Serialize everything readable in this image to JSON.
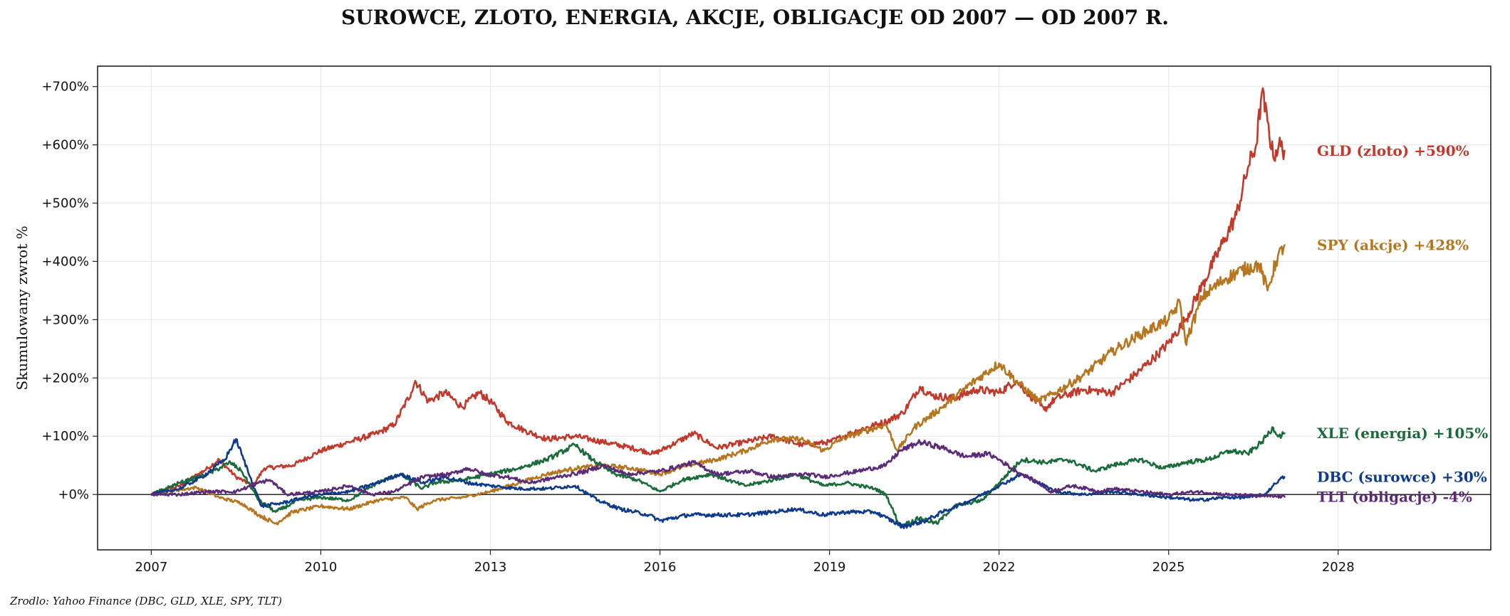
{
  "chart_data": {
    "type": "line",
    "title": "SUROWCE, ZLOTO, ENERGIA, AKCJE, OBLIGACJE OD 2007 — OD 2007 R.",
    "xlabel": "",
    "ylabel": "Skumulowany zwrot %",
    "source": "Zrodlo: Yahoo Finance (DBC, GLD, XLE, SPY, TLT)",
    "xlim": [
      2006.05,
      2030.7
    ],
    "ylim": [
      -95,
      735
    ],
    "x_ticks": [
      2007,
      2010,
      2013,
      2016,
      2019,
      2022,
      2025,
      2028
    ],
    "x_tick_labels": [
      "2007",
      "2010",
      "2013",
      "2016",
      "2019",
      "2022",
      "2025",
      "2028"
    ],
    "y_ticks": [
      0,
      100,
      200,
      300,
      400,
      500,
      600,
      700
    ],
    "y_tick_labels": [
      "+0%",
      "+100%",
      "+200%",
      "+300%",
      "+400%",
      "+500%",
      "+600%",
      "+700%"
    ],
    "grid": true,
    "zero_line": true,
    "series": [
      {
        "name": "GLD (zloto)",
        "end_label": "GLD (zloto)  +590%",
        "label_y": 590,
        "color": "#c0392b",
        "points": [
          [
            2007.0,
            0
          ],
          [
            2007.5,
            15
          ],
          [
            2008.0,
            45
          ],
          [
            2008.2,
            60
          ],
          [
            2008.5,
            30
          ],
          [
            2008.8,
            15
          ],
          [
            2009.0,
            45
          ],
          [
            2009.5,
            50
          ],
          [
            2010.0,
            75
          ],
          [
            2010.5,
            90
          ],
          [
            2011.0,
            105
          ],
          [
            2011.3,
            120
          ],
          [
            2011.6,
            175
          ],
          [
            2011.67,
            195
          ],
          [
            2011.9,
            160
          ],
          [
            2012.2,
            175
          ],
          [
            2012.5,
            150
          ],
          [
            2012.8,
            175
          ],
          [
            2013.0,
            160
          ],
          [
            2013.3,
            125
          ],
          [
            2013.6,
            110
          ],
          [
            2014.0,
            95
          ],
          [
            2014.5,
            100
          ],
          [
            2015.0,
            90
          ],
          [
            2015.5,
            80
          ],
          [
            2015.9,
            70
          ],
          [
            2016.3,
            90
          ],
          [
            2016.6,
            105
          ],
          [
            2017.0,
            80
          ],
          [
            2017.5,
            90
          ],
          [
            2018.0,
            100
          ],
          [
            2018.5,
            85
          ],
          [
            2019.0,
            90
          ],
          [
            2019.5,
            110
          ],
          [
            2020.0,
            125
          ],
          [
            2020.3,
            140
          ],
          [
            2020.6,
            185
          ],
          [
            2020.8,
            170
          ],
          [
            2021.2,
            165
          ],
          [
            2021.6,
            180
          ],
          [
            2022.0,
            175
          ],
          [
            2022.3,
            195
          ],
          [
            2022.8,
            145
          ],
          [
            2023.0,
            165
          ],
          [
            2023.5,
            180
          ],
          [
            2024.0,
            175
          ],
          [
            2024.4,
            205
          ],
          [
            2024.8,
            240
          ],
          [
            2025.0,
            260
          ],
          [
            2025.3,
            300
          ],
          [
            2025.6,
            360
          ],
          [
            2025.8,
            400
          ],
          [
            2026.0,
            440
          ],
          [
            2026.2,
            480
          ],
          [
            2026.4,
            560
          ],
          [
            2026.55,
            600
          ],
          [
            2026.65,
            690
          ],
          [
            2026.75,
            640
          ],
          [
            2026.85,
            580
          ],
          [
            2026.95,
            600
          ],
          [
            2027.05,
            590
          ]
        ]
      },
      {
        "name": "SPY (akcje)",
        "end_label": "SPY (akcje)  +428%",
        "label_y": 428,
        "color": "#b5761f",
        "points": [
          [
            2007.0,
            0
          ],
          [
            2007.5,
            8
          ],
          [
            2007.8,
            12
          ],
          [
            2008.2,
            -5
          ],
          [
            2008.6,
            -15
          ],
          [
            2008.9,
            -35
          ],
          [
            2009.2,
            -50
          ],
          [
            2009.5,
            -30
          ],
          [
            2010.0,
            -20
          ],
          [
            2010.5,
            -25
          ],
          [
            2011.0,
            -10
          ],
          [
            2011.5,
            -5
          ],
          [
            2011.7,
            -25
          ],
          [
            2012.0,
            -10
          ],
          [
            2012.5,
            -5
          ],
          [
            2013.0,
            5
          ],
          [
            2013.5,
            20
          ],
          [
            2014.0,
            35
          ],
          [
            2014.5,
            45
          ],
          [
            2015.0,
            50
          ],
          [
            2015.5,
            45
          ],
          [
            2016.0,
            35
          ],
          [
            2016.5,
            50
          ],
          [
            2017.0,
            60
          ],
          [
            2017.5,
            75
          ],
          [
            2018.0,
            95
          ],
          [
            2018.5,
            95
          ],
          [
            2018.9,
            75
          ],
          [
            2019.2,
            95
          ],
          [
            2019.5,
            105
          ],
          [
            2020.0,
            120
          ],
          [
            2020.2,
            75
          ],
          [
            2020.5,
            115
          ],
          [
            2021.0,
            150
          ],
          [
            2021.5,
            190
          ],
          [
            2022.0,
            225
          ],
          [
            2022.3,
            195
          ],
          [
            2022.7,
            160
          ],
          [
            2023.0,
            175
          ],
          [
            2023.5,
            205
          ],
          [
            2024.0,
            245
          ],
          [
            2024.5,
            275
          ],
          [
            2025.0,
            300
          ],
          [
            2025.2,
            330
          ],
          [
            2025.3,
            260
          ],
          [
            2025.6,
            340
          ],
          [
            2026.0,
            370
          ],
          [
            2026.3,
            385
          ],
          [
            2026.6,
            395
          ],
          [
            2026.75,
            350
          ],
          [
            2026.9,
            400
          ],
          [
            2027.05,
            428
          ]
        ]
      },
      {
        "name": "XLE (energia)",
        "end_label": "XLE (energia)  +105%",
        "label_y": 105,
        "color": "#1a6b3a",
        "points": [
          [
            2007.0,
            0
          ],
          [
            2007.5,
            20
          ],
          [
            2008.0,
            35
          ],
          [
            2008.4,
            55
          ],
          [
            2008.6,
            40
          ],
          [
            2008.9,
            -10
          ],
          [
            2009.2,
            -30
          ],
          [
            2009.6,
            -10
          ],
          [
            2010.0,
            -5
          ],
          [
            2010.5,
            -10
          ],
          [
            2011.0,
            20
          ],
          [
            2011.4,
            35
          ],
          [
            2011.8,
            10
          ],
          [
            2012.0,
            20
          ],
          [
            2012.5,
            25
          ],
          [
            2013.0,
            35
          ],
          [
            2013.5,
            45
          ],
          [
            2014.0,
            60
          ],
          [
            2014.5,
            85
          ],
          [
            2014.8,
            60
          ],
          [
            2015.2,
            35
          ],
          [
            2015.6,
            25
          ],
          [
            2016.0,
            5
          ],
          [
            2016.4,
            25
          ],
          [
            2016.9,
            35
          ],
          [
            2017.5,
            15
          ],
          [
            2018.0,
            25
          ],
          [
            2018.4,
            35
          ],
          [
            2018.9,
            15
          ],
          [
            2019.3,
            20
          ],
          [
            2019.8,
            10
          ],
          [
            2020.0,
            0
          ],
          [
            2020.25,
            -55
          ],
          [
            2020.6,
            -40
          ],
          [
            2020.9,
            -50
          ],
          [
            2021.2,
            -20
          ],
          [
            2021.7,
            -10
          ],
          [
            2022.0,
            20
          ],
          [
            2022.4,
            60
          ],
          [
            2022.8,
            55
          ],
          [
            2023.2,
            60
          ],
          [
            2023.7,
            40
          ],
          [
            2024.0,
            50
          ],
          [
            2024.5,
            60
          ],
          [
            2024.9,
            45
          ],
          [
            2025.3,
            55
          ],
          [
            2025.7,
            60
          ],
          [
            2026.1,
            75
          ],
          [
            2026.4,
            70
          ],
          [
            2026.65,
            90
          ],
          [
            2026.85,
            115
          ],
          [
            2026.95,
            100
          ],
          [
            2027.05,
            105
          ]
        ]
      },
      {
        "name": "DBC (surowce)",
        "end_label": "DBC (surowce)  +30%",
        "label_y": 30,
        "color": "#0e3a8c",
        "points": [
          [
            2007.0,
            0
          ],
          [
            2007.5,
            10
          ],
          [
            2007.9,
            30
          ],
          [
            2008.3,
            60
          ],
          [
            2008.5,
            95
          ],
          [
            2008.75,
            30
          ],
          [
            2008.95,
            -20
          ],
          [
            2009.3,
            -15
          ],
          [
            2009.7,
            -5
          ],
          [
            2010.0,
            0
          ],
          [
            2010.5,
            5
          ],
          [
            2011.0,
            20
          ],
          [
            2011.4,
            35
          ],
          [
            2011.8,
            20
          ],
          [
            2012.2,
            30
          ],
          [
            2012.6,
            20
          ],
          [
            2013.0,
            15
          ],
          [
            2013.5,
            10
          ],
          [
            2014.0,
            10
          ],
          [
            2014.5,
            15
          ],
          [
            2014.9,
            -10
          ],
          [
            2015.3,
            -25
          ],
          [
            2015.8,
            -35
          ],
          [
            2016.0,
            -45
          ],
          [
            2016.5,
            -35
          ],
          [
            2017.0,
            -35
          ],
          [
            2017.5,
            -35
          ],
          [
            2018.0,
            -30
          ],
          [
            2018.4,
            -25
          ],
          [
            2018.9,
            -35
          ],
          [
            2019.3,
            -30
          ],
          [
            2019.8,
            -30
          ],
          [
            2020.0,
            -40
          ],
          [
            2020.3,
            -55
          ],
          [
            2020.7,
            -45
          ],
          [
            2021.0,
            -30
          ],
          [
            2021.5,
            -10
          ],
          [
            2022.0,
            15
          ],
          [
            2022.4,
            35
          ],
          [
            2022.7,
            20
          ],
          [
            2023.0,
            5
          ],
          [
            2023.5,
            0
          ],
          [
            2024.0,
            5
          ],
          [
            2024.5,
            0
          ],
          [
            2025.0,
            -5
          ],
          [
            2025.5,
            -10
          ],
          [
            2026.0,
            -5
          ],
          [
            2026.4,
            -5
          ],
          [
            2026.7,
            0
          ],
          [
            2026.85,
            15
          ],
          [
            2026.95,
            25
          ],
          [
            2027.05,
            30
          ]
        ]
      },
      {
        "name": "TLT (obligacje)",
        "end_label": "TLT (obligacje)  -4%",
        "label_y": -4,
        "color": "#5b2a78",
        "points": [
          [
            2007.0,
            0
          ],
          [
            2007.5,
            0
          ],
          [
            2008.0,
            5
          ],
          [
            2008.5,
            5
          ],
          [
            2008.9,
            20
          ],
          [
            2009.1,
            25
          ],
          [
            2009.4,
            0
          ],
          [
            2010.0,
            5
          ],
          [
            2010.5,
            15
          ],
          [
            2010.9,
            0
          ],
          [
            2011.3,
            5
          ],
          [
            2011.8,
            30
          ],
          [
            2012.3,
            35
          ],
          [
            2012.6,
            45
          ],
          [
            2012.9,
            35
          ],
          [
            2013.3,
            30
          ],
          [
            2013.7,
            20
          ],
          [
            2014.2,
            30
          ],
          [
            2014.7,
            40
          ],
          [
            2015.0,
            50
          ],
          [
            2015.4,
            35
          ],
          [
            2016.0,
            40
          ],
          [
            2016.6,
            55
          ],
          [
            2017.0,
            35
          ],
          [
            2017.6,
            40
          ],
          [
            2018.0,
            30
          ],
          [
            2018.6,
            35
          ],
          [
            2018.9,
            30
          ],
          [
            2019.5,
            40
          ],
          [
            2020.0,
            50
          ],
          [
            2020.25,
            75
          ],
          [
            2020.6,
            90
          ],
          [
            2021.0,
            80
          ],
          [
            2021.4,
            65
          ],
          [
            2021.8,
            70
          ],
          [
            2022.0,
            60
          ],
          [
            2022.3,
            40
          ],
          [
            2022.7,
            20
          ],
          [
            2022.9,
            5
          ],
          [
            2023.3,
            15
          ],
          [
            2023.8,
            5
          ],
          [
            2024.0,
            10
          ],
          [
            2024.5,
            5
          ],
          [
            2025.0,
            0
          ],
          [
            2025.5,
            5
          ],
          [
            2026.0,
            0
          ],
          [
            2026.5,
            -2
          ],
          [
            2027.05,
            -4
          ]
        ]
      }
    ]
  }
}
